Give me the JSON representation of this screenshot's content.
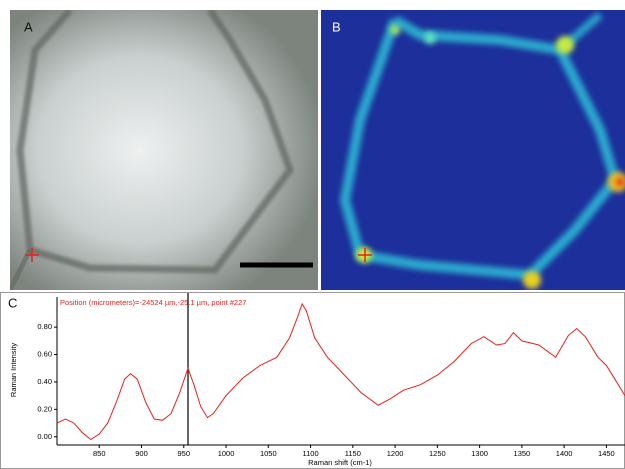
{
  "panel_labels": [
    "A",
    "B"
  ],
  "chart_data": {
    "type": "line",
    "panel_label": "C",
    "annotation": "Position (micrometers)=-24524 µm,-25.1 µm, point #227",
    "x_label": "Raman shift (cm-1)",
    "y_label": "Raman Intensity",
    "x": [
      800,
      810,
      820,
      830,
      840,
      850,
      860,
      870,
      880,
      887,
      895,
      905,
      915,
      925,
      935,
      945,
      955,
      962,
      970,
      978,
      985,
      1000,
      1020,
      1040,
      1060,
      1075,
      1085,
      1090,
      1095,
      1105,
      1120,
      1140,
      1160,
      1180,
      1195,
      1210,
      1230,
      1250,
      1270,
      1290,
      1305,
      1320,
      1330,
      1340,
      1350,
      1370,
      1390,
      1405,
      1415,
      1425,
      1440,
      1450,
      1460,
      1472
    ],
    "values": [
      0.1,
      0.13,
      0.1,
      0.03,
      -0.02,
      0.02,
      0.1,
      0.25,
      0.42,
      0.46,
      0.42,
      0.25,
      0.13,
      0.12,
      0.17,
      0.32,
      0.5,
      0.38,
      0.22,
      0.14,
      0.17,
      0.3,
      0.43,
      0.52,
      0.58,
      0.72,
      0.88,
      0.97,
      0.92,
      0.72,
      0.58,
      0.45,
      0.32,
      0.23,
      0.28,
      0.34,
      0.38,
      0.45,
      0.55,
      0.68,
      0.73,
      0.67,
      0.68,
      0.76,
      0.7,
      0.67,
      0.58,
      0.74,
      0.79,
      0.73,
      0.58,
      0.52,
      0.42,
      0.3
    ],
    "color": "#e8201c",
    "cursor_x": 955,
    "xlim": [
      800,
      1472
    ],
    "ylim": [
      -0.06,
      1.02
    ],
    "xticks": [
      850,
      900,
      950,
      1000,
      1050,
      1100,
      1150,
      1200,
      1250,
      1300,
      1350,
      1400,
      1450
    ],
    "yticks": [
      {
        "value": 0,
        "label": "0.00"
      },
      {
        "value": 0.2,
        "label": "0.20"
      },
      {
        "value": 0.4,
        "label": "0.40"
      },
      {
        "value": 0.6,
        "label": "0.60"
      },
      {
        "value": 0.8,
        "label": "0.80"
      }
    ]
  }
}
